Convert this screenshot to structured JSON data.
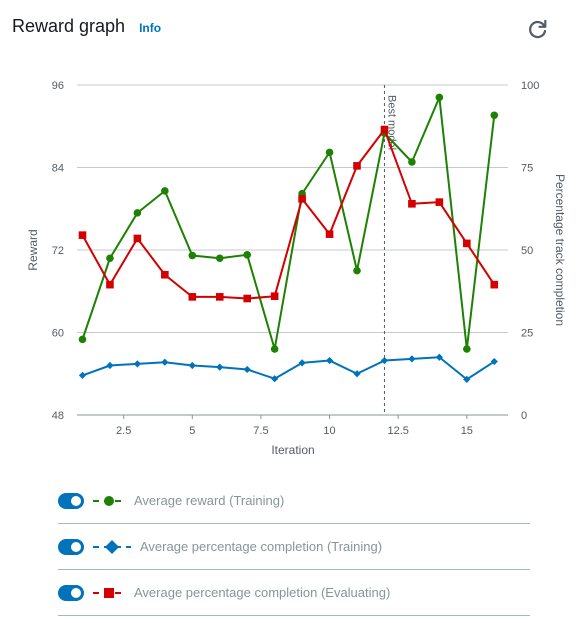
{
  "header": {
    "title": "Reward graph",
    "info": "Info"
  },
  "icons": {
    "refresh": "refresh-icon"
  },
  "colors": {
    "reward": "#1d8102",
    "training": "#0073bb",
    "evaluating": "#d40000",
    "toggle": "#0073bb"
  },
  "legend": [
    {
      "label": "Average reward (Training)",
      "marker": "circle",
      "color": "#1d8102",
      "enabled": true
    },
    {
      "label": "Average percentage completion (Training)",
      "marker": "diamond",
      "color": "#0073bb",
      "enabled": true
    },
    {
      "label": "Average percentage completion (Evaluating)",
      "marker": "square",
      "color": "#d40000",
      "enabled": true
    }
  ],
  "chart_data": {
    "type": "line",
    "xlabel": "Iteration",
    "ylabel": "Reward",
    "y2label": "Percentage track completion",
    "xlim": [
      0.8,
      16.5
    ],
    "ylim": [
      48,
      96
    ],
    "y2lim": [
      0,
      100
    ],
    "xticks": [
      "2.5",
      "5",
      "7.5",
      "10",
      "12.5",
      "15"
    ],
    "yticks": [
      "48",
      "60",
      "72",
      "84",
      "96"
    ],
    "y2ticks": [
      "0",
      "25",
      "50",
      "75",
      "100"
    ],
    "annotation": {
      "label": "Best model",
      "x": 12
    },
    "x": [
      1,
      2,
      3,
      4,
      5,
      6,
      7,
      8,
      9,
      10,
      11,
      12,
      13,
      14,
      15,
      16
    ],
    "series": [
      {
        "name": "Average reward (Training)",
        "axis": "left",
        "marker": "circle",
        "color": "#1d8102",
        "values": [
          59.0,
          70.8,
          77.4,
          80.6,
          71.2,
          70.8,
          71.3,
          57.6,
          80.2,
          86.2,
          69.0,
          89.0,
          84.8,
          94.2,
          57.6,
          91.6
        ]
      },
      {
        "name": "Average percentage completion (Training)",
        "axis": "right",
        "marker": "diamond",
        "color": "#0073bb",
        "values": [
          12,
          15,
          15.5,
          16,
          15,
          14.5,
          13.8,
          11,
          15.8,
          16.5,
          12.5,
          16.5,
          17,
          17.5,
          10.8,
          16.2
        ]
      },
      {
        "name": "Average percentage completion (Evaluating)",
        "axis": "right",
        "marker": "square",
        "color": "#d40000",
        "values": [
          54.5,
          39.5,
          53.5,
          42.5,
          35.8,
          35.8,
          35.3,
          36,
          65.5,
          54.8,
          75.5,
          86.5,
          64,
          64.5,
          52,
          39.5
        ]
      }
    ]
  }
}
